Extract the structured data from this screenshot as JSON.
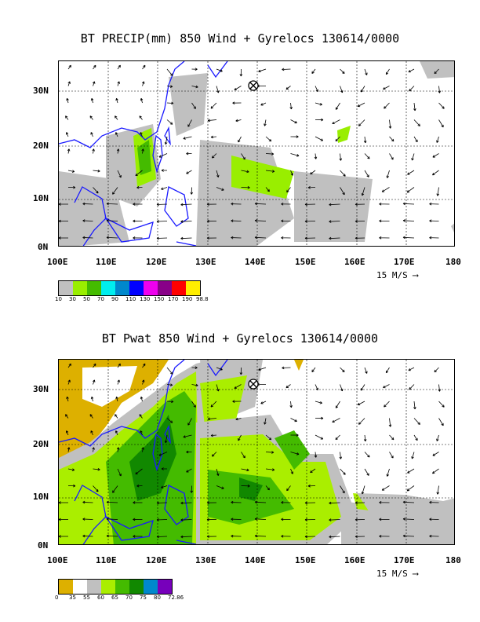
{
  "panel1": {
    "title": "BT PRECIP(mm) 850 Wind + Gyrelocs 130614/0000",
    "x_ticks": [
      "100E",
      "110E",
      "120E",
      "130E",
      "140E",
      "150E",
      "160E",
      "170E",
      "180"
    ],
    "y_ticks": [
      "30N",
      "20N",
      "10N",
      "0N"
    ],
    "scale": "15 M/S ⟶",
    "legend_colors": [
      "#c0c0c0",
      "#99ee00",
      "#44bb00",
      "#00eeee",
      "#0088cc",
      "#0000ff",
      "#ee00ee",
      "#880088",
      "#ff0000",
      "#ffee00"
    ],
    "legend_labels": [
      "10",
      "30",
      "50",
      "70",
      "90",
      "110",
      "130",
      "150",
      "170",
      "190",
      "98.8"
    ]
  },
  "panel2": {
    "title": "BT Pwat 850 Wind + Gyrelocs 130614/0000",
    "x_ticks": [
      "100E",
      "110E",
      "120E",
      "130E",
      "140E",
      "150E",
      "160E",
      "170E",
      "180"
    ],
    "y_ticks": [
      "30N",
      "20N",
      "10N",
      "0N"
    ],
    "scale": "15 M/S ⟶",
    "legend_colors": [
      "#ddb000",
      "#ffffff",
      "#c0c0c0",
      "#aaee00",
      "#44bb00",
      "#118800",
      "#0088cc",
      "#7700bb"
    ],
    "legend_labels": [
      "0",
      "35",
      "55",
      "60",
      "65",
      "70",
      "75",
      "80",
      "72.86"
    ]
  }
}
